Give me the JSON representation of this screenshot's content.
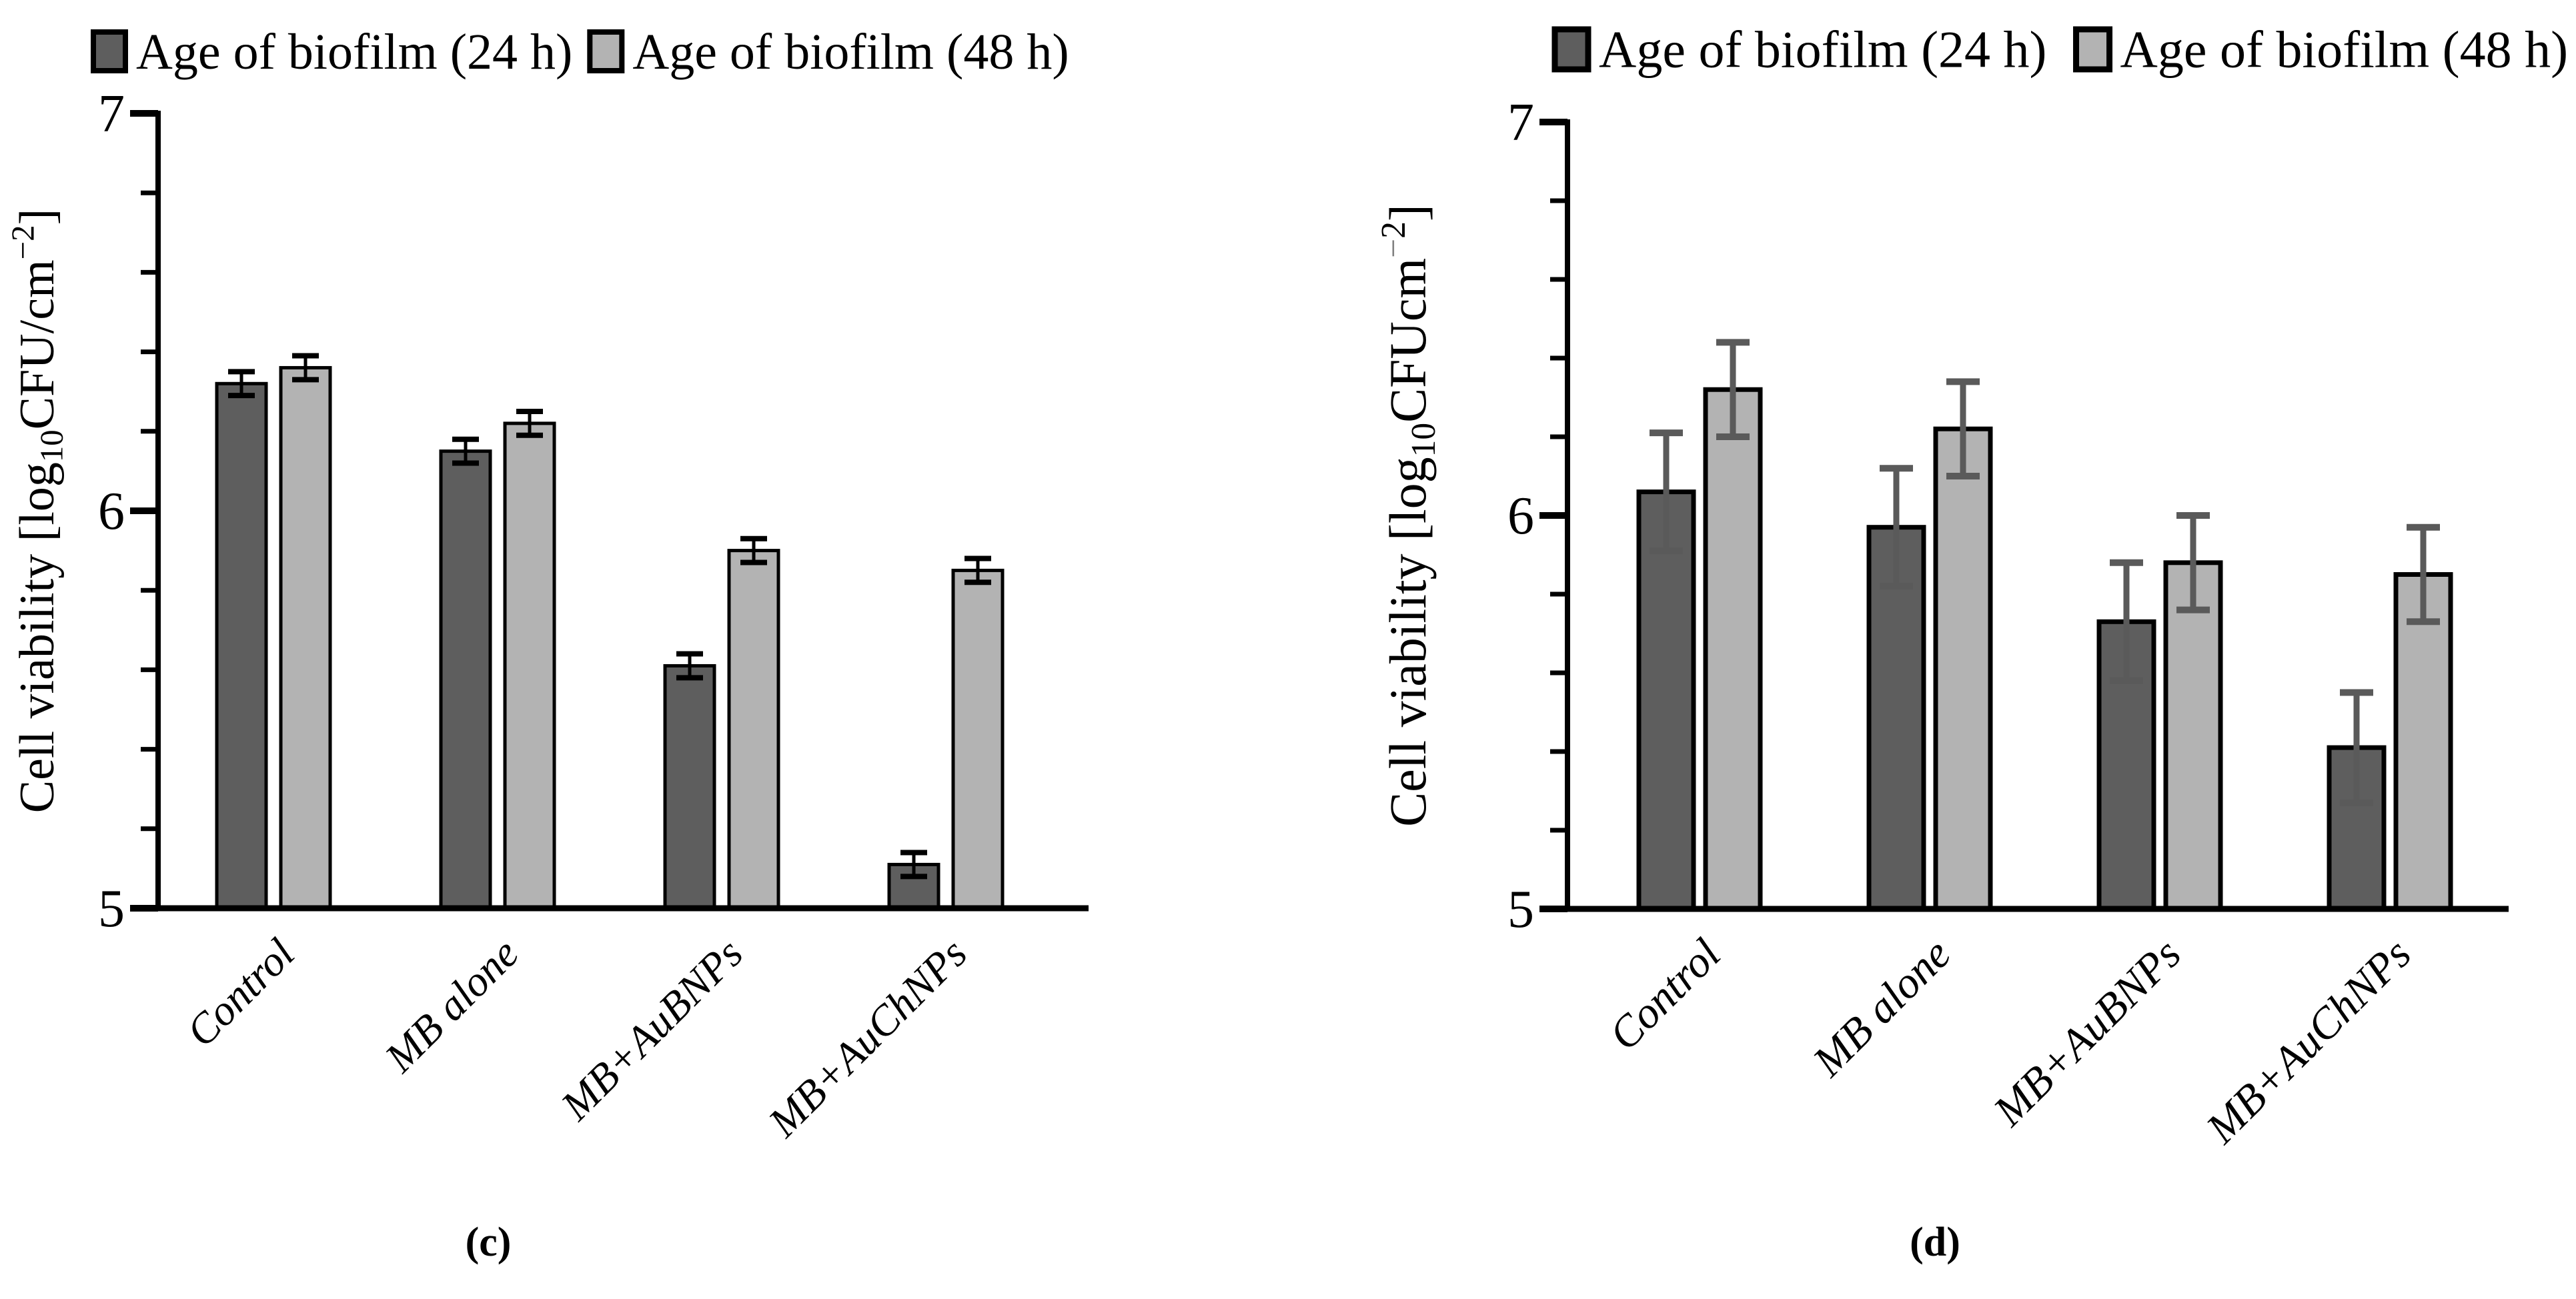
{
  "figure": {
    "background": "#ffffff",
    "series_colors": {
      "24h": "#5e5e5e",
      "48h": "#b3b3b3"
    },
    "axis_color": "#000000"
  },
  "chart_data": [
    {
      "type": "bar",
      "panel": "c",
      "caption": "(c)",
      "categories": [
        "Control",
        "MB alone",
        "MB+AuBNPs",
        "MB+AuChNPs"
      ],
      "series": [
        {
          "name": "Age of biofilm (24 h)",
          "color": "#5e5e5e",
          "values": [
            6.32,
            6.15,
            5.61,
            5.11
          ],
          "errors": [
            0.03,
            0.03,
            0.03,
            0.03
          ]
        },
        {
          "name": "Age of biofilm (48 h)",
          "color": "#b3b3b3",
          "values": [
            6.36,
            6.22,
            5.9,
            5.85
          ],
          "errors": [
            0.03,
            0.03,
            0.03,
            0.03
          ]
        }
      ],
      "error_bar_color": "#000000",
      "ylabel": "Cell viability [log10CFU/cm-2]",
      "ylabel_parts": {
        "prefix": "Cell viability [log",
        "sub": "10",
        "mid": "CFU/cm",
        "sup_minus": "−",
        "sup_digit": "2",
        "suffix": "]"
      },
      "ylim": [
        5,
        7
      ],
      "yticks": [
        5,
        6,
        7
      ],
      "minor_tick_step": 0.2,
      "legend_position": "top-left",
      "grid": false
    },
    {
      "type": "bar",
      "panel": "d",
      "caption": "(d)",
      "categories": [
        "Control",
        "MB alone",
        "MB+AuBNPs",
        "MB+AuChNPs"
      ],
      "series": [
        {
          "name": "Age of biofilm (24 h)",
          "color": "#5e5e5e",
          "values": [
            6.06,
            5.97,
            5.73,
            5.41
          ],
          "errors": [
            0.15,
            0.15,
            0.15,
            0.14
          ]
        },
        {
          "name": "Age of biofilm (48 h)",
          "color": "#b3b3b3",
          "values": [
            6.32,
            6.22,
            5.88,
            5.85
          ],
          "errors": [
            0.12,
            0.12,
            0.12,
            0.12
          ]
        }
      ],
      "error_bar_color": "#5a5a5a",
      "ylabel": "Cell viability [log10CFUcm-2]",
      "ylabel_parts": {
        "prefix": "Cell viability [log",
        "sub": "10",
        "mid": "CFUcm",
        "sup_minus": "−",
        "sup_digit": "2",
        "suffix": "]"
      },
      "ylim": [
        5,
        7
      ],
      "yticks": [
        5,
        6,
        7
      ],
      "minor_tick_step": 0.2,
      "legend_position": "top-left",
      "grid": false
    }
  ]
}
